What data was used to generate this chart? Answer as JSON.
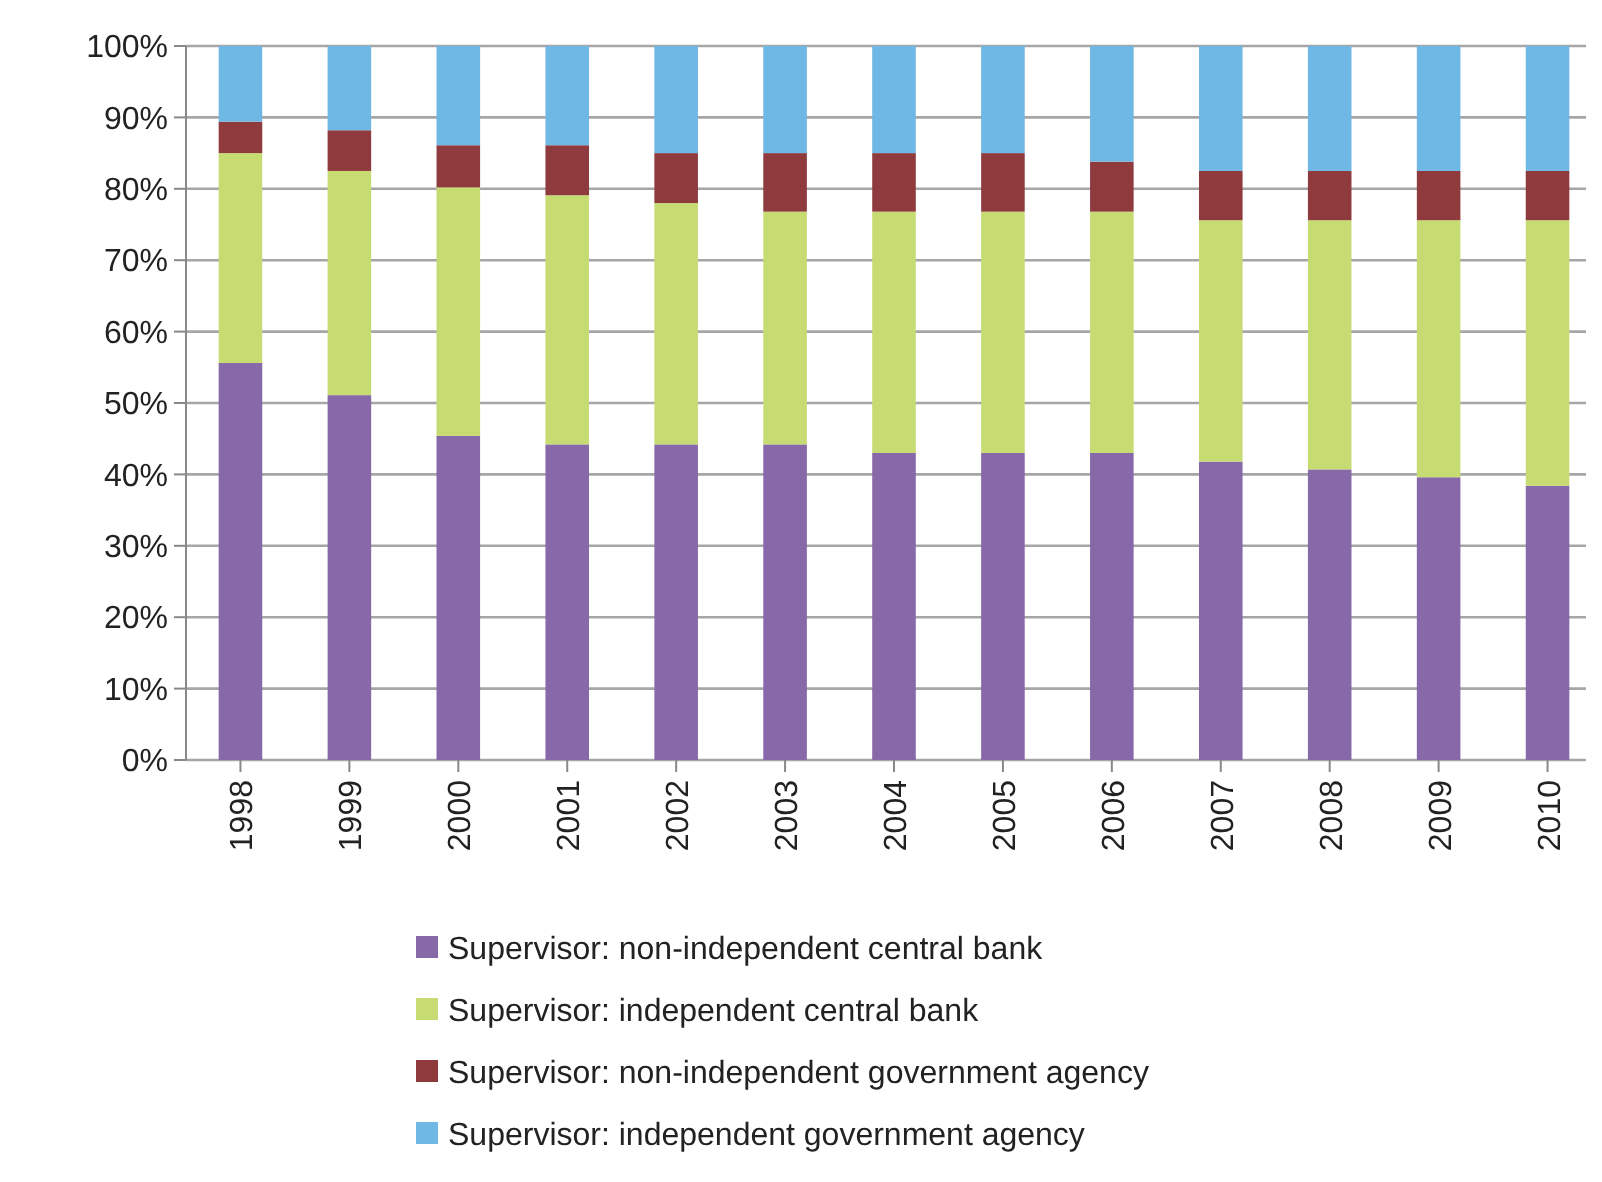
{
  "chart_data": {
    "type": "bar",
    "stacked": true,
    "categories": [
      "1998",
      "1999",
      "2000",
      "2001",
      "2002",
      "2003",
      "2004",
      "2005",
      "2006",
      "2007",
      "2008",
      "2009",
      "2010"
    ],
    "series": [
      {
        "name": "Supervisor: non-independent central bank",
        "color": "#8768a9",
        "values": [
          55.6,
          51.1,
          45.4,
          44.2,
          44.2,
          44.2,
          43.0,
          43.0,
          43.0,
          41.8,
          40.7,
          39.6,
          38.4
        ]
      },
      {
        "name": "Supervisor: independent central bank",
        "color": "#c6dc73",
        "values": [
          29.4,
          31.4,
          34.8,
          34.9,
          33.8,
          32.6,
          33.8,
          33.8,
          33.8,
          33.8,
          34.9,
          36.0,
          37.2
        ]
      },
      {
        "name": "Supervisor: non-independent government agency",
        "color": "#8f3b3e",
        "values": [
          4.4,
          5.7,
          5.9,
          7.0,
          7.0,
          8.2,
          8.2,
          8.2,
          7.0,
          6.9,
          6.9,
          6.9,
          6.9
        ]
      },
      {
        "name": "Supervisor: independent government agency",
        "color": "#6fb7e4",
        "values": [
          10.6,
          11.8,
          13.9,
          13.9,
          15.0,
          15.0,
          15.0,
          15.0,
          16.2,
          17.5,
          17.5,
          17.5,
          17.5
        ]
      }
    ],
    "ylim": [
      0,
      100
    ],
    "yticks": [
      {
        "value": 0,
        "label": "0%"
      },
      {
        "value": 10,
        "label": "10%"
      },
      {
        "value": 20,
        "label": "20%"
      },
      {
        "value": 30,
        "label": "30%"
      },
      {
        "value": 40,
        "label": "40%"
      },
      {
        "value": 50,
        "label": "50%"
      },
      {
        "value": 60,
        "label": "60%"
      },
      {
        "value": 70,
        "label": "70%"
      },
      {
        "value": 80,
        "label": "80%"
      },
      {
        "value": 90,
        "label": "90%"
      },
      {
        "value": 100,
        "label": "100%"
      }
    ],
    "grid": "y",
    "legend": "bottom"
  }
}
